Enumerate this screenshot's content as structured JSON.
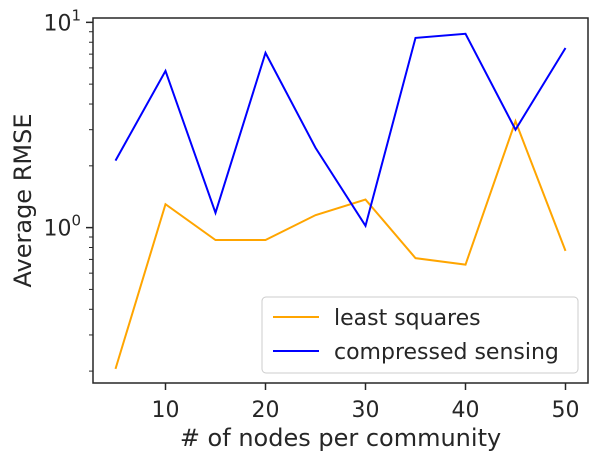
{
  "chart_data": {
    "type": "line",
    "xlabel": "# of nodes per community",
    "ylabel": "Average RMSE",
    "x": [
      5,
      10,
      15,
      20,
      25,
      30,
      35,
      40,
      45,
      50
    ],
    "xlim": [
      2.75,
      52.25
    ],
    "ylim": [
      0.175,
      10.5
    ],
    "yscale": "log",
    "x_ticks": [
      10,
      20,
      30,
      40,
      50
    ],
    "x_tick_labels": [
      "10",
      "20",
      "30",
      "40",
      "50"
    ],
    "y_major_ticks": [
      1,
      10
    ],
    "y_tick_labels": [
      {
        "base": "10",
        "exp": "0"
      },
      {
        "base": "10",
        "exp": "1"
      }
    ],
    "grid": false,
    "legend_position": "lower-right",
    "series": [
      {
        "name": "least squares",
        "color": "#ffa500",
        "values": [
          0.205,
          1.3,
          0.87,
          0.87,
          1.15,
          1.37,
          0.71,
          0.66,
          3.3,
          0.77
        ]
      },
      {
        "name": "compressed sensing",
        "color": "#0000ff",
        "values": [
          2.12,
          5.8,
          1.18,
          7.1,
          2.45,
          1.02,
          8.4,
          8.8,
          3.0,
          7.5
        ]
      }
    ]
  }
}
